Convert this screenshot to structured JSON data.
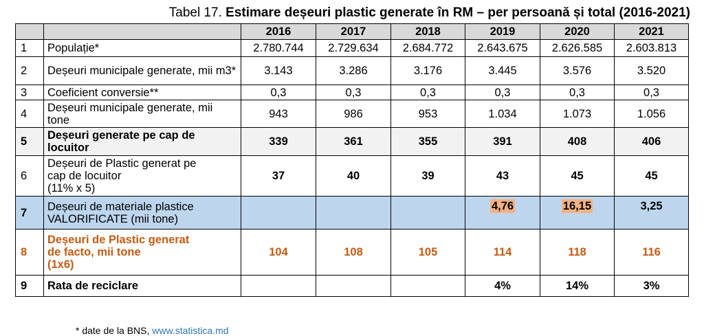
{
  "caption": {
    "prefix": "Tabel 17. ",
    "title": "Estimare deșeuri plastic generate în RM – per persoană și total (2016-2021)"
  },
  "table": {
    "years": [
      "2016",
      "2017",
      "2018",
      "2019",
      "2020",
      "2021"
    ],
    "rows": [
      {
        "no": "1",
        "label": "Populație*",
        "values": [
          "2.780.744",
          "2.729.634",
          "2.684.772",
          "2.643.675",
          "2.626.585",
          "2.603.813"
        ]
      },
      {
        "no": "2",
        "label": "Deșeuri municipale generate, mii m3*",
        "values": [
          "3.143",
          "3.286",
          "3.176",
          "3.445",
          "3.576",
          "3.520"
        ]
      },
      {
        "no": "3",
        "label": "Coeficient conversie**",
        "values": [
          "0,3",
          "0,3",
          "0,3",
          "0,3",
          "0,3",
          "0,3"
        ]
      },
      {
        "no": "4",
        "label": "Deșeuri municipale generate, mii tone",
        "values": [
          "943",
          "986",
          "953",
          "1.034",
          "1.073",
          "1.056"
        ]
      },
      {
        "no": "5",
        "label": "Deșeuri generate pe cap de locuitor",
        "values": [
          "339",
          "361",
          "355",
          "391",
          "408",
          "406"
        ]
      },
      {
        "no": "6",
        "label_lines": [
          "Deșeuri de Plastic generat pe",
          "cap de locuitor",
          "(11% x 5)"
        ],
        "values": [
          "37",
          "40",
          "39",
          "43",
          "45",
          "45"
        ]
      },
      {
        "no": "7",
        "label_lines": [
          "Deșeuri de materiale plastice",
          "VALORIFICATE (mii tone)"
        ],
        "values": [
          "",
          "",
          "",
          "4,76",
          "16,15",
          "3,25"
        ]
      },
      {
        "no": "8",
        "label_lines": [
          "Deșeuri de Plastic generat",
          "de facto, mii tone",
          "(1x6)"
        ],
        "values": [
          "104",
          "108",
          "105",
          "114",
          "118",
          "116"
        ]
      },
      {
        "no": "9",
        "label": "Rata de reciclare",
        "values": [
          "",
          "",
          "",
          "4%",
          "14%",
          "3%"
        ]
      }
    ]
  },
  "colors": {
    "header_bg": "#d9d9d9",
    "row5_bg": "#f2f2f2",
    "row7_bg": "#bdd6ee",
    "highlight": "#f4b183",
    "row8_text": "#c55a11"
  },
  "footnote": {
    "text": "* date de la BNS, ",
    "link": "www.statistica.md"
  }
}
